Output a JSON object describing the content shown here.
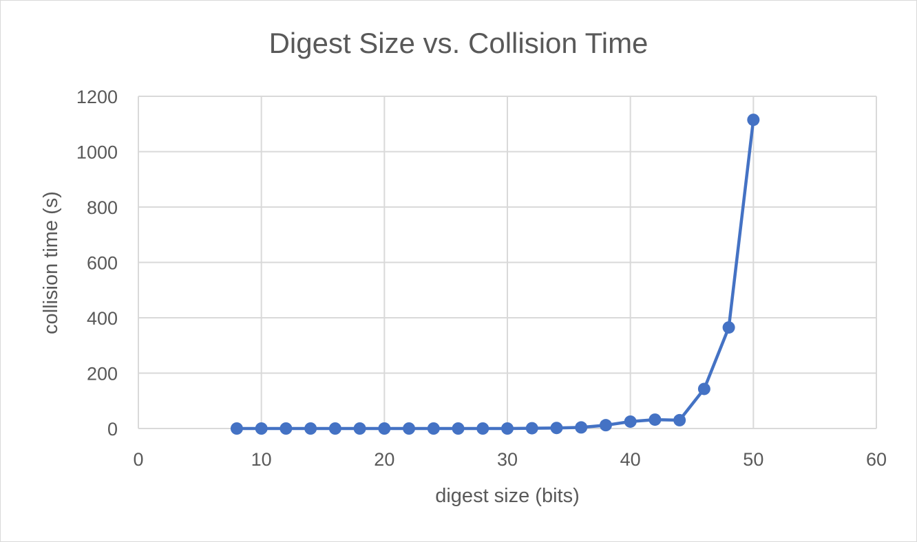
{
  "chart_data": {
    "type": "scatter",
    "title": "Digest Size vs. Collision Time",
    "xlabel": "digest size (bits)",
    "ylabel": "collision time (s)",
    "xlim": [
      0,
      60
    ],
    "ylim": [
      0,
      1200
    ],
    "xticks": [
      0,
      10,
      20,
      30,
      40,
      50,
      60
    ],
    "yticks": [
      0,
      200,
      400,
      600,
      800,
      1000,
      1200
    ],
    "grid": true,
    "line_color": "#4472c4",
    "marker": "circle",
    "series": [
      {
        "x": [
          8,
          10,
          12,
          14,
          16,
          18,
          20,
          22,
          24,
          26,
          28,
          30,
          32,
          34,
          36,
          38,
          40,
          42,
          44,
          46,
          48,
          50
        ],
        "y": [
          0,
          0,
          0,
          0,
          0,
          0,
          0,
          0,
          0,
          0,
          0,
          0,
          1,
          2,
          4,
          12,
          25,
          32,
          30,
          143,
          365,
          1115
        ]
      }
    ]
  }
}
